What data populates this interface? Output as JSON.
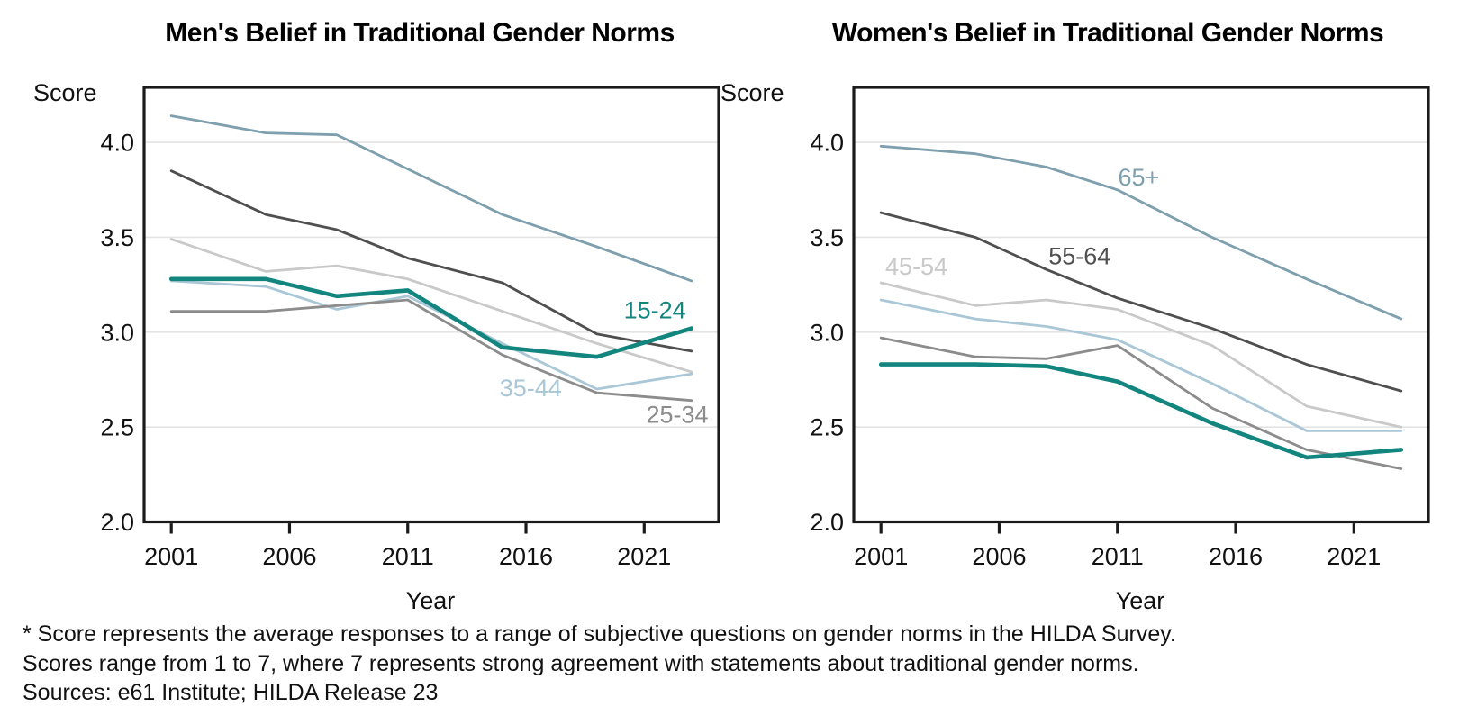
{
  "page": {
    "background": "#ffffff",
    "text_color": "#111111",
    "frame_color": "#1a1a1a",
    "grid_color": "#e4e4e4"
  },
  "chart_data": [
    {
      "type": "line",
      "title": "Men's Belief in Traditional Gender Norms",
      "xlabel": "Year",
      "ylabel": "Score",
      "x": [
        2001,
        2005,
        2008,
        2011,
        2015,
        2019,
        2023
      ],
      "xticks": [
        "2001",
        "2006",
        "2011",
        "2016",
        "2021"
      ],
      "xtick_years": [
        2001,
        2006,
        2011,
        2016,
        2021
      ],
      "yticks": [
        "2.0",
        "2.5",
        "3.0",
        "3.5",
        "4.0"
      ],
      "ytick_values": [
        2.0,
        2.5,
        3.0,
        3.5,
        4.0
      ],
      "xlim": [
        1999.85,
        2024.15
      ],
      "ylim": [
        2.0,
        4.29
      ],
      "grid": true,
      "legend_position": "inline-annotations",
      "series": [
        {
          "name": "65+",
          "color": "#7e9fae",
          "emphasis": false,
          "values": [
            4.14,
            4.05,
            4.04,
            3.86,
            3.62,
            3.45,
            3.27
          ]
        },
        {
          "name": "55-64",
          "color": "#4f4f4f",
          "emphasis": false,
          "values": [
            3.85,
            3.62,
            3.54,
            3.39,
            3.26,
            2.99,
            2.9
          ]
        },
        {
          "name": "45-54",
          "color": "#c9c9c9",
          "emphasis": false,
          "values": [
            3.49,
            3.32,
            3.35,
            3.28,
            3.11,
            2.94,
            2.79
          ]
        },
        {
          "name": "35-44",
          "color": "#a9c7d6",
          "emphasis": false,
          "values": [
            3.27,
            3.24,
            3.12,
            3.19,
            2.94,
            2.7,
            2.78
          ]
        },
        {
          "name": "25-34",
          "color": "#8c8c8c",
          "emphasis": false,
          "values": [
            3.11,
            3.11,
            3.14,
            3.17,
            2.88,
            2.68,
            2.64
          ]
        },
        {
          "name": "15-24",
          "color": "#12857e",
          "emphasis": true,
          "values": [
            3.28,
            3.28,
            3.19,
            3.22,
            2.92,
            2.87,
            3.02
          ]
        }
      ],
      "annotations": [
        {
          "text": "15-24",
          "year": 2021.45,
          "score": 3.115,
          "color": "#12857e"
        },
        {
          "text": "35-44",
          "year": 2016.2,
          "score": 2.705,
          "color": "#a9c7d6"
        },
        {
          "text": "25-34",
          "year": 2022.4,
          "score": 2.565,
          "color": "#8c8c8c"
        }
      ]
    },
    {
      "type": "line",
      "title": "Women's Belief in Traditional Gender Norms",
      "xlabel": "Year",
      "ylabel": "Score",
      "x": [
        2001,
        2005,
        2008,
        2011,
        2015,
        2019,
        2023
      ],
      "xticks": [
        "2001",
        "2006",
        "2011",
        "2016",
        "2021"
      ],
      "xtick_years": [
        2001,
        2006,
        2011,
        2016,
        2021
      ],
      "yticks": [
        "2.0",
        "2.5",
        "3.0",
        "3.5",
        "4.0"
      ],
      "ytick_values": [
        2.0,
        2.5,
        3.0,
        3.5,
        4.0
      ],
      "xlim": [
        1999.85,
        2024.15
      ],
      "ylim": [
        2.0,
        4.29
      ],
      "grid": true,
      "legend_position": "inline-annotations",
      "series": [
        {
          "name": "65+",
          "color": "#7e9fae",
          "emphasis": false,
          "values": [
            3.98,
            3.94,
            3.87,
            3.75,
            3.5,
            3.28,
            3.07
          ]
        },
        {
          "name": "55-64",
          "color": "#4f4f4f",
          "emphasis": false,
          "values": [
            3.63,
            3.5,
            3.33,
            3.18,
            3.02,
            2.83,
            2.69
          ]
        },
        {
          "name": "45-54",
          "color": "#c9c9c9",
          "emphasis": false,
          "values": [
            3.26,
            3.14,
            3.17,
            3.12,
            2.93,
            2.61,
            2.5
          ]
        },
        {
          "name": "35-44",
          "color": "#a9c7d6",
          "emphasis": false,
          "values": [
            3.17,
            3.07,
            3.03,
            2.96,
            2.73,
            2.48,
            2.48
          ]
        },
        {
          "name": "25-34",
          "color": "#8c8c8c",
          "emphasis": false,
          "values": [
            2.97,
            2.87,
            2.86,
            2.93,
            2.6,
            2.38,
            2.28
          ]
        },
        {
          "name": "15-24",
          "color": "#12857e",
          "emphasis": true,
          "values": [
            2.83,
            2.83,
            2.82,
            2.74,
            2.52,
            2.34,
            2.38
          ]
        }
      ],
      "annotations": [
        {
          "text": "65+",
          "year": 2011.9,
          "score": 3.815,
          "color": "#7e9fae"
        },
        {
          "text": "55-64",
          "year": 2009.4,
          "score": 3.4,
          "color": "#4f4f4f"
        },
        {
          "text": "45-54",
          "year": 2002.5,
          "score": 3.345,
          "color": "#c9c9c9"
        }
      ]
    }
  ],
  "footnote": {
    "line1": "* Score represents the average responses to a range of subjective questions on gender norms in the HILDA Survey.",
    "line2": "Scores range from 1 to 7, where 7 represents strong agreement with statements about traditional gender norms.",
    "line3": "Sources: e61 Institute; HILDA Release 23"
  }
}
